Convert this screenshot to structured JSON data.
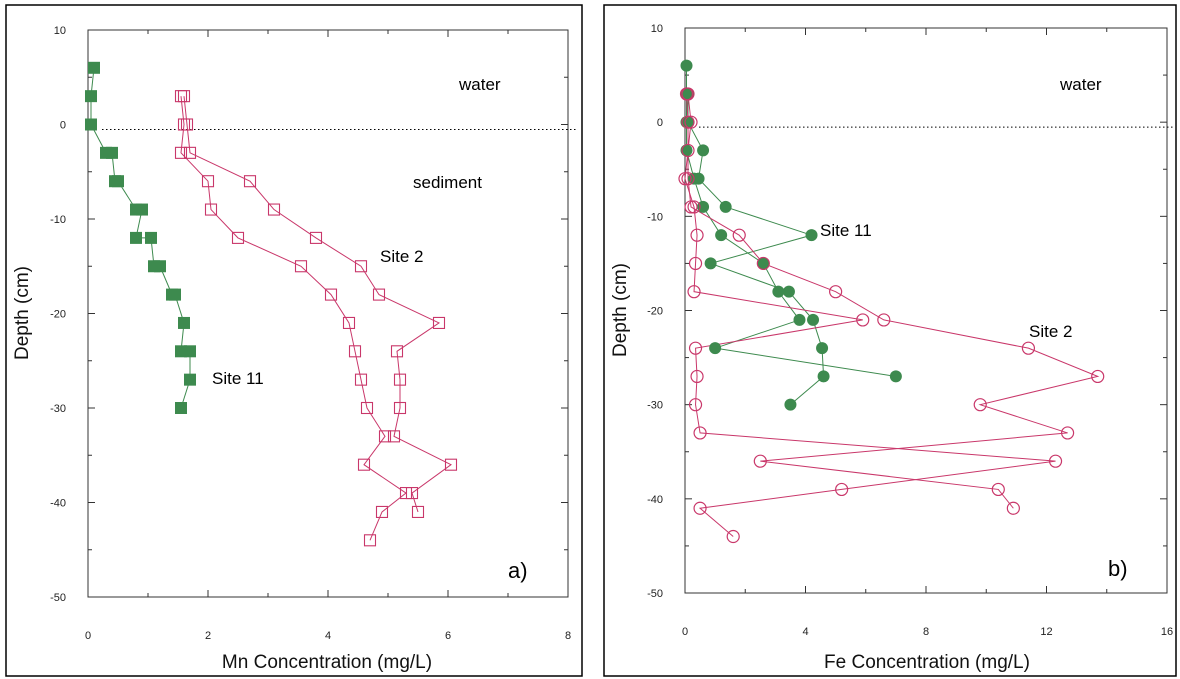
{
  "chart_data": [
    {
      "type": "scatter",
      "xlabel": "Mn Concentration (mg/L)",
      "ylabel": "Depth (cm)",
      "xlim": [
        0,
        8
      ],
      "ylim": [
        -50,
        10
      ],
      "xticks": [
        0,
        2,
        4,
        6,
        8
      ],
      "yticks": [
        10,
        0,
        -10,
        -20,
        -30,
        -40,
        -50
      ],
      "interface_depth": 0,
      "annotations": {
        "water": "water",
        "sediment": "sediment",
        "panel": "a)"
      },
      "colors": {
        "site11": "#3d8a4e",
        "site2": "#c9376a"
      },
      "series": [
        {
          "name": "Site 11",
          "marker": "filled-square",
          "pairs": [
            [
              [
                0.1,
                6
              ],
              [
                0.05,
                3
              ]
            ],
            [
              [
                0.05,
                3
              ],
              [
                0.05,
                0
              ]
            ],
            [
              [
                0.05,
                0
              ],
              [
                0.3,
                -3
              ],
              [
                0.4,
                -3
              ]
            ],
            [
              [
                0.4,
                -3
              ],
              [
                0.45,
                -6
              ],
              [
                0.5,
                -6
              ]
            ],
            [
              [
                0.5,
                -6
              ],
              [
                0.8,
                -9
              ],
              [
                0.9,
                -9
              ]
            ],
            [
              [
                0.9,
                -9
              ],
              [
                0.8,
                -12
              ],
              [
                1.05,
                -12
              ]
            ],
            [
              [
                1.05,
                -12
              ],
              [
                1.1,
                -15
              ],
              [
                1.2,
                -15
              ]
            ],
            [
              [
                1.2,
                -15
              ],
              [
                1.4,
                -18
              ],
              [
                1.45,
                -18
              ]
            ],
            [
              [
                1.45,
                -18
              ],
              [
                1.6,
                -21
              ]
            ],
            [
              [
                1.6,
                -21
              ],
              [
                1.55,
                -24
              ],
              [
                1.7,
                -24
              ]
            ],
            [
              [
                1.7,
                -24
              ],
              [
                1.7,
                -27
              ]
            ],
            [
              [
                1.7,
                -27
              ],
              [
                1.55,
                -30
              ]
            ]
          ],
          "points": [
            [
              0.1,
              6
            ],
            [
              0.05,
              3
            ],
            [
              0.05,
              0
            ],
            [
              0.3,
              -3
            ],
            [
              0.4,
              -3
            ],
            [
              0.45,
              -6
            ],
            [
              0.5,
              -6
            ],
            [
              0.8,
              -9
            ],
            [
              0.9,
              -9
            ],
            [
              0.8,
              -12
            ],
            [
              1.05,
              -12
            ],
            [
              1.1,
              -15
            ],
            [
              1.2,
              -15
            ],
            [
              1.4,
              -18
            ],
            [
              1.45,
              -18
            ],
            [
              1.6,
              -21
            ],
            [
              1.55,
              -24
            ],
            [
              1.7,
              -24
            ],
            [
              1.7,
              -27
            ],
            [
              1.55,
              -30
            ]
          ]
        },
        {
          "name": "Site 2",
          "marker": "open-square",
          "lines": [
            [
              [
                1.55,
                3
              ],
              [
                1.6,
                0
              ],
              [
                1.55,
                -3
              ],
              [
                2.0,
                -6
              ],
              [
                2.05,
                -9
              ],
              [
                2.5,
                -12
              ],
              [
                3.55,
                -15
              ],
              [
                4.05,
                -18
              ],
              [
                4.35,
                -21
              ],
              [
                4.45,
                -24
              ],
              [
                4.55,
                -27
              ],
              [
                4.65,
                -30
              ],
              [
                4.95,
                -33
              ],
              [
                4.6,
                -36
              ],
              [
                5.3,
                -39
              ],
              [
                4.9,
                -41
              ],
              [
                4.7,
                -44
              ]
            ],
            [
              [
                1.6,
                3
              ],
              [
                1.65,
                0
              ],
              [
                1.7,
                -3
              ],
              [
                2.7,
                -6
              ],
              [
                3.1,
                -9
              ],
              [
                3.8,
                -12
              ],
              [
                4.55,
                -15
              ],
              [
                4.85,
                -18
              ],
              [
                5.85,
                -21
              ],
              [
                5.15,
                -24
              ],
              [
                5.2,
                -27
              ],
              [
                5.2,
                -30
              ],
              [
                5.1,
                -33
              ],
              [
                6.05,
                -36
              ],
              [
                5.4,
                -39
              ],
              [
                5.5,
                -41
              ]
            ]
          ],
          "points": [
            [
              1.55,
              3
            ],
            [
              1.6,
              3
            ],
            [
              1.6,
              0
            ],
            [
              1.65,
              0
            ],
            [
              1.55,
              -3
            ],
            [
              1.7,
              -3
            ],
            [
              2.0,
              -6
            ],
            [
              2.7,
              -6
            ],
            [
              2.05,
              -9
            ],
            [
              3.1,
              -9
            ],
            [
              2.5,
              -12
            ],
            [
              3.8,
              -12
            ],
            [
              3.55,
              -15
            ],
            [
              4.55,
              -15
            ],
            [
              4.05,
              -18
            ],
            [
              4.85,
              -18
            ],
            [
              4.35,
              -21
            ],
            [
              5.85,
              -21
            ],
            [
              4.45,
              -24
            ],
            [
              5.15,
              -24
            ],
            [
              4.55,
              -27
            ],
            [
              5.2,
              -27
            ],
            [
              4.65,
              -30
            ],
            [
              5.2,
              -30
            ],
            [
              4.95,
              -33
            ],
            [
              5.1,
              -33
            ],
            [
              4.6,
              -36
            ],
            [
              6.05,
              -36
            ],
            [
              5.3,
              -39
            ],
            [
              5.4,
              -39
            ],
            [
              4.9,
              -41
            ],
            [
              5.5,
              -41
            ],
            [
              4.7,
              -44
            ]
          ]
        }
      ],
      "labels": [
        {
          "text": "Site 2",
          "x": 4.9,
          "y": -14
        },
        {
          "text": "Site 11",
          "x": 2.1,
          "y": -27
        }
      ]
    },
    {
      "type": "scatter",
      "xlabel": "Fe Concentration (mg/L)",
      "ylabel": "Depth (cm)",
      "xlim": [
        0,
        16
      ],
      "ylim": [
        -50,
        10
      ],
      "xticks": [
        0,
        4,
        8,
        12,
        16
      ],
      "yticks": [
        10,
        0,
        -10,
        -20,
        -30,
        -40,
        -50
      ],
      "interface_depth": 0,
      "annotations": {
        "water": "water",
        "panel": "b)"
      },
      "colors": {
        "site11": "#3d8a4e",
        "site2": "#c9376a"
      },
      "series": [
        {
          "name": "Site 11",
          "marker": "filled-circle",
          "lines": [
            [
              [
                0.05,
                6
              ],
              [
                0.05,
                3
              ],
              [
                0.05,
                0
              ],
              [
                0.05,
                -3
              ],
              [
                0.3,
                -6
              ],
              [
                0.6,
                -9
              ],
              [
                1.2,
                -12
              ],
              [
                2.6,
                -15
              ],
              [
                3.1,
                -18
              ],
              [
                3.8,
                -21
              ],
              [
                1.0,
                -24
              ],
              [
                7.0,
                -27
              ]
            ],
            [
              [
                0.1,
                3
              ],
              [
                0.1,
                0
              ],
              [
                0.6,
                -3
              ],
              [
                0.45,
                -6
              ],
              [
                1.35,
                -9
              ],
              [
                4.2,
                -12
              ],
              [
                0.85,
                -15
              ],
              [
                3.45,
                -18
              ],
              [
                4.25,
                -21
              ],
              [
                4.55,
                -24
              ],
              [
                4.6,
                -27
              ],
              [
                3.5,
                -30
              ]
            ]
          ],
          "points": [
            [
              0.05,
              6
            ],
            [
              0.05,
              3
            ],
            [
              0.1,
              3
            ],
            [
              0.05,
              0
            ],
            [
              0.1,
              0
            ],
            [
              0.05,
              -3
            ],
            [
              0.6,
              -3
            ],
            [
              0.3,
              -6
            ],
            [
              0.45,
              -6
            ],
            [
              0.6,
              -9
            ],
            [
              1.35,
              -9
            ],
            [
              1.2,
              -12
            ],
            [
              4.2,
              -12
            ],
            [
              2.6,
              -15
            ],
            [
              0.85,
              -15
            ],
            [
              3.1,
              -18
            ],
            [
              3.45,
              -18
            ],
            [
              3.8,
              -21
            ],
            [
              4.25,
              -21
            ],
            [
              1.0,
              -24
            ],
            [
              4.55,
              -24
            ],
            [
              7.0,
              -27
            ],
            [
              4.6,
              -27
            ],
            [
              3.5,
              -30
            ]
          ]
        },
        {
          "name": "Site 2",
          "marker": "open-circle",
          "lines": [
            [
              [
                0.05,
                3
              ],
              [
                0.1,
                0
              ],
              [
                0.1,
                -3
              ],
              [
                0.0,
                -6
              ],
              [
                0.3,
                -9
              ],
              [
                0.4,
                -12
              ],
              [
                0.35,
                -15
              ],
              [
                0.3,
                -18
              ],
              [
                5.9,
                -21
              ],
              [
                0.35,
                -24
              ],
              [
                0.4,
                -27
              ],
              [
                0.35,
                -30
              ],
              [
                0.5,
                -33
              ],
              [
                12.3,
                -36
              ],
              [
                5.2,
                -39
              ],
              [
                0.5,
                -41
              ],
              [
                1.6,
                -44
              ]
            ],
            [
              [
                0.1,
                3
              ],
              [
                0.2,
                0
              ],
              [
                0.1,
                -3
              ],
              [
                0.1,
                -6
              ],
              [
                0.2,
                -9
              ],
              [
                1.8,
                -12
              ],
              [
                2.6,
                -15
              ],
              [
                5.0,
                -18
              ],
              [
                6.6,
                -21
              ],
              [
                11.4,
                -24
              ],
              [
                13.7,
                -27
              ],
              [
                9.8,
                -30
              ],
              [
                12.7,
                -33
              ],
              [
                2.5,
                -36
              ],
              [
                10.4,
                -39
              ],
              [
                10.9,
                -41
              ]
            ]
          ],
          "points": [
            [
              0.05,
              3
            ],
            [
              0.1,
              3
            ],
            [
              0.1,
              0
            ],
            [
              0.2,
              0
            ],
            [
              0.1,
              -3
            ],
            [
              0.0,
              -6
            ],
            [
              0.1,
              -6
            ],
            [
              0.3,
              -9
            ],
            [
              0.2,
              -9
            ],
            [
              0.4,
              -12
            ],
            [
              1.8,
              -12
            ],
            [
              0.35,
              -15
            ],
            [
              2.6,
              -15
            ],
            [
              0.3,
              -18
            ],
            [
              5.0,
              -18
            ],
            [
              5.9,
              -21
            ],
            [
              6.6,
              -21
            ],
            [
              0.35,
              -24
            ],
            [
              11.4,
              -24
            ],
            [
              0.4,
              -27
            ],
            [
              13.7,
              -27
            ],
            [
              0.35,
              -30
            ],
            [
              9.8,
              -30
            ],
            [
              0.5,
              -33
            ],
            [
              12.7,
              -33
            ],
            [
              12.3,
              -36
            ],
            [
              2.5,
              -36
            ],
            [
              5.2,
              -39
            ],
            [
              10.4,
              -39
            ],
            [
              0.5,
              -41
            ],
            [
              10.9,
              -41
            ],
            [
              1.6,
              -44
            ]
          ]
        }
      ],
      "labels": [
        {
          "text": "Site 11",
          "x": 4.4,
          "y": -11.5
        },
        {
          "text": "Site 2",
          "x": 11.5,
          "y": -22.5
        }
      ]
    }
  ]
}
